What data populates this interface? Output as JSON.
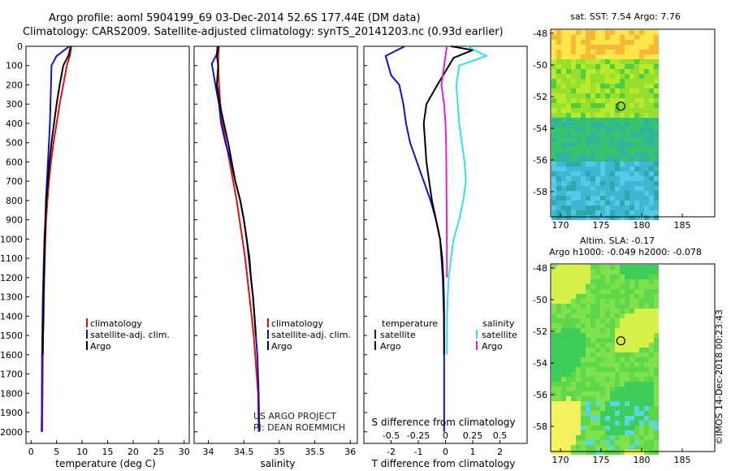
{
  "header": {
    "line1": "Argo profile: aoml 5904199_69 03-Dec-2014 52.6S 177.44E (DM data)",
    "line2": "Climatology: CARS2009. Satellite-adjusted climatology: synTS_20141203.nc (0.93d earlier)"
  },
  "colors": {
    "climatology": "#e01010",
    "satellite": "#1010d0",
    "argo": "#000000",
    "sat_salinity": "#30e0f0",
    "argo_salinity": "#e020e0"
  },
  "sst_map_title": "sat. SST: 7.54 Argo: 7.76",
  "sla_title_1": "Altim. SLA: -0.17",
  "sla_title_2": "Argo h1000: -0.049 h2000: -0.078",
  "credit_project": "US ARGO PROJECT",
  "credit_pi": "PI: DEAN ROEMMICH",
  "footer_stamp": "©IMOS 14-Dec-2018 00:23:43",
  "chart_data": [
    {
      "id": "temperature",
      "type": "line",
      "xlabel": "temperature (deg C)",
      "ylabel": "",
      "xlim": [
        -1,
        31
      ],
      "ylim": [
        2060,
        0
      ],
      "xticks": [
        "0",
        "5",
        "10",
        "15",
        "20",
        "25",
        "30"
      ],
      "yticks": [
        "0",
        "100",
        "200",
        "300",
        "400",
        "500",
        "600",
        "700",
        "800",
        "900",
        "1000",
        "1100",
        "1200",
        "1300",
        "1400",
        "1500",
        "1600",
        "1700",
        "1800",
        "1900",
        "2000"
      ],
      "legend": [
        "climatology",
        "satellite-adj. clim.",
        "Argo"
      ],
      "series": [
        {
          "name": "climatology",
          "x": [
            7.9,
            7.6,
            7.0,
            6.3,
            5.6,
            5.0,
            4.4,
            3.9,
            3.5,
            3.2,
            2.95,
            2.8,
            2.7,
            2.6,
            2.5,
            2.45,
            2.35,
            2.3,
            2.25,
            2.2,
            2.2
          ],
          "y": [
            0,
            50,
            100,
            200,
            300,
            400,
            500,
            600,
            700,
            800,
            900,
            1000,
            1100,
            1200,
            1300,
            1400,
            1500,
            1600,
            1800,
            1900,
            2000
          ]
        },
        {
          "name": "satellite-adj. clim.",
          "x": [
            7.5,
            5.0,
            4.0,
            3.9,
            3.8,
            3.7,
            3.5,
            3.3,
            3.1,
            2.9,
            2.8,
            2.6,
            2.5,
            2.4,
            2.3,
            2.25,
            2.2,
            2.15,
            2.1,
            2.1,
            2.05
          ],
          "y": [
            0,
            50,
            100,
            200,
            300,
            400,
            500,
            600,
            700,
            800,
            900,
            1000,
            1100,
            1200,
            1300,
            1400,
            1500,
            1600,
            1800,
            1900,
            2000
          ]
        },
        {
          "name": "Argo",
          "x": [
            7.8,
            7.3,
            6.3,
            5.6,
            5.0,
            4.5,
            4.0,
            3.6,
            3.3,
            3.0,
            2.8,
            2.7,
            2.6,
            2.5,
            2.45,
            2.4,
            2.35,
            2.3
          ],
          "y": [
            0,
            50,
            100,
            200,
            300,
            400,
            500,
            600,
            700,
            800,
            900,
            1000,
            1100,
            1200,
            1300,
            1400,
            1500,
            1600
          ]
        }
      ]
    },
    {
      "id": "salinity",
      "type": "line",
      "xlabel": "salinity",
      "ylabel": "",
      "xlim": [
        33.8,
        36.1
      ],
      "ylim": [
        2060,
        0
      ],
      "xticks": [
        "34",
        "34.5",
        "35",
        "35.5",
        "36"
      ],
      "legend": [
        "climatology",
        "satellite-adj. clim.",
        "Argo"
      ],
      "series": [
        {
          "name": "climatology",
          "x": [
            34.15,
            34.14,
            34.14,
            34.15,
            34.17,
            34.2,
            34.25,
            34.3,
            34.35,
            34.4,
            34.44,
            34.48,
            34.52,
            34.55,
            34.58,
            34.61,
            34.64,
            34.66,
            34.68,
            34.7,
            34.71
          ],
          "y": [
            0,
            50,
            100,
            200,
            300,
            400,
            500,
            600,
            700,
            800,
            900,
            1000,
            1100,
            1200,
            1300,
            1400,
            1500,
            1600,
            1700,
            1800,
            2000
          ]
        },
        {
          "name": "satellite-adj. clim.",
          "x": [
            34.13,
            34.12,
            34.05,
            34.1,
            34.15,
            34.18,
            34.24,
            34.32,
            34.38,
            34.45,
            34.5,
            34.54,
            34.57,
            34.6,
            34.63,
            34.65,
            34.67,
            34.69,
            34.7,
            34.71,
            34.72
          ],
          "y": [
            0,
            40,
            90,
            200,
            300,
            400,
            500,
            600,
            700,
            800,
            900,
            1000,
            1100,
            1200,
            1300,
            1400,
            1500,
            1600,
            1700,
            1800,
            2000
          ]
        },
        {
          "name": "Argo",
          "x": [
            34.14,
            34.12,
            34.14,
            34.12,
            34.16,
            34.22,
            34.28,
            34.33,
            34.38,
            34.45,
            34.5,
            34.54,
            34.58,
            34.6,
            34.63,
            34.65,
            34.67
          ],
          "y": [
            0,
            50,
            100,
            200,
            300,
            400,
            500,
            600,
            700,
            800,
            900,
            1000,
            1100,
            1200,
            1300,
            1400,
            1500
          ]
        }
      ]
    },
    {
      "id": "difference",
      "type": "line",
      "xlabel": "T difference from climatology",
      "top_label": "S difference from climatology",
      "xlim": [
        -3,
        3
      ],
      "ylim": [
        2060,
        0
      ],
      "xticks": [
        "-2",
        "-1",
        "0",
        "1",
        "2"
      ],
      "sticks": [
        "-0.5",
        "-0.25",
        "0",
        "0.25",
        "0.5"
      ],
      "legend_left_title": "temperature",
      "legend_right_title": "salinity",
      "legend_left": [
        "satellite",
        "Argo"
      ],
      "legend_right": [
        "satellite",
        "Argo"
      ],
      "series": [
        {
          "name": "satellite",
          "x": [
            -1.5,
            -2.2,
            -2.0,
            -1.7,
            -1.55,
            -1.45,
            -1.3,
            -1.05,
            -0.8,
            -0.55,
            -0.35,
            -0.2,
            -0.15,
            -0.1,
            -0.08,
            -0.06,
            -0.05,
            -0.05,
            -0.05
          ],
          "y": [
            0,
            50,
            150,
            200,
            300,
            400,
            500,
            600,
            700,
            800,
            900,
            1000,
            1100,
            1200,
            1300,
            1400,
            1600,
            1800,
            2000
          ]
        },
        {
          "name": "Argo",
          "x": [
            0.2,
            1.0,
            0.3,
            -0.3,
            -0.7,
            -0.8,
            -0.75,
            -0.7,
            -0.6,
            -0.5,
            -0.35,
            -0.2,
            -0.12,
            -0.08,
            -0.06,
            -0.05,
            -0.05
          ],
          "y": [
            0,
            20,
            60,
            200,
            300,
            400,
            500,
            600,
            700,
            800,
            900,
            1000,
            1100,
            1200,
            1300,
            1400,
            1600
          ]
        },
        {
          "name": "satellite salinity",
          "x": [
            0.8,
            1.5,
            0.5,
            0.4,
            0.45,
            0.5,
            0.6,
            0.7,
            0.75,
            0.65,
            0.5,
            0.3,
            0.2,
            0.12,
            0.08,
            0.06,
            0.05
          ],
          "y": [
            0,
            50,
            100,
            200,
            300,
            400,
            500,
            600,
            700,
            800,
            900,
            1000,
            1100,
            1200,
            1300,
            1400,
            1600
          ]
        },
        {
          "name": "Argo salinity",
          "x": [
            0.05,
            0.0,
            -0.05,
            -0.15,
            -0.05,
            0.0,
            0.02,
            0.03,
            0.04,
            0.05,
            0.05
          ],
          "y": [
            0,
            50,
            100,
            200,
            300,
            400,
            500,
            600,
            800,
            1000,
            1200
          ]
        }
      ]
    },
    {
      "id": "sst_map",
      "type": "heatmap",
      "title": "sat. SST: 7.54 Argo: 7.76",
      "xticks": [
        "170",
        "175",
        "180",
        "185"
      ],
      "yticks": [
        "-48",
        "-50",
        "-52",
        "-54",
        "-56",
        "-58"
      ],
      "float_position": {
        "lon": 177.44,
        "lat": -52.6
      }
    },
    {
      "id": "sla_map",
      "type": "heatmap",
      "title": "Altim. SLA: -0.17",
      "xticks": [
        "170",
        "175",
        "180",
        "185"
      ],
      "yticks": [
        "-48",
        "-50",
        "-52",
        "-54",
        "-56",
        "-58"
      ],
      "float_position": {
        "lon": 177.44,
        "lat": -52.6
      }
    }
  ]
}
